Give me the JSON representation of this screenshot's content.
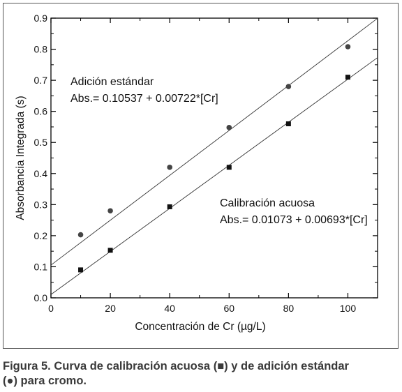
{
  "chart_data": {
    "type": "scatter",
    "xlabel": "Concentración de Cr (µg/L)",
    "ylabel": "Absorbancia Integrada (s)",
    "xlim": [
      0,
      110
    ],
    "ylim": [
      0,
      0.9
    ],
    "x_ticks": [
      0,
      20,
      40,
      60,
      80,
      100
    ],
    "y_ticks": [
      0.0,
      0.1,
      0.2,
      0.3,
      0.4,
      0.5,
      0.6,
      0.7,
      0.8,
      0.9
    ],
    "x_tick_labels": [
      "0",
      "20",
      "40",
      "60",
      "80",
      "100"
    ],
    "y_tick_labels": [
      "0.0",
      "0.1",
      "0.2",
      "0.3",
      "0.4",
      "0.5",
      "0.6",
      "0.7",
      "0.8",
      "0.9"
    ],
    "grid": false,
    "series": [
      {
        "marker": "circle",
        "x": [
          10,
          20,
          40,
          60,
          80,
          100
        ],
        "y": [
          0.203,
          0.28,
          0.42,
          0.548,
          0.68,
          0.808
        ],
        "fit": {
          "intercept": 0.10537,
          "slope": 0.00722
        },
        "annotation": [
          "Adición estándar",
          "Abs.= 0.10537 + 0.00722*[Cr]"
        ]
      },
      {
        "marker": "square",
        "x": [
          10,
          20,
          40,
          60,
          80,
          100
        ],
        "y": [
          0.09,
          0.153,
          0.293,
          0.42,
          0.56,
          0.71
        ],
        "fit": {
          "intercept": 0.01073,
          "slope": 0.00693
        },
        "annotation": [
          "Calibración acuosa",
          "Abs.= 0.01073 + 0.00693*[Cr]"
        ]
      }
    ]
  },
  "caption": {
    "part1": "Figura 5. Curva de calibración acuosa (",
    "square_icon": "■",
    "part2": ") y de adición estándar",
    "circle_icon": "●",
    "part3": ") para cromo."
  }
}
